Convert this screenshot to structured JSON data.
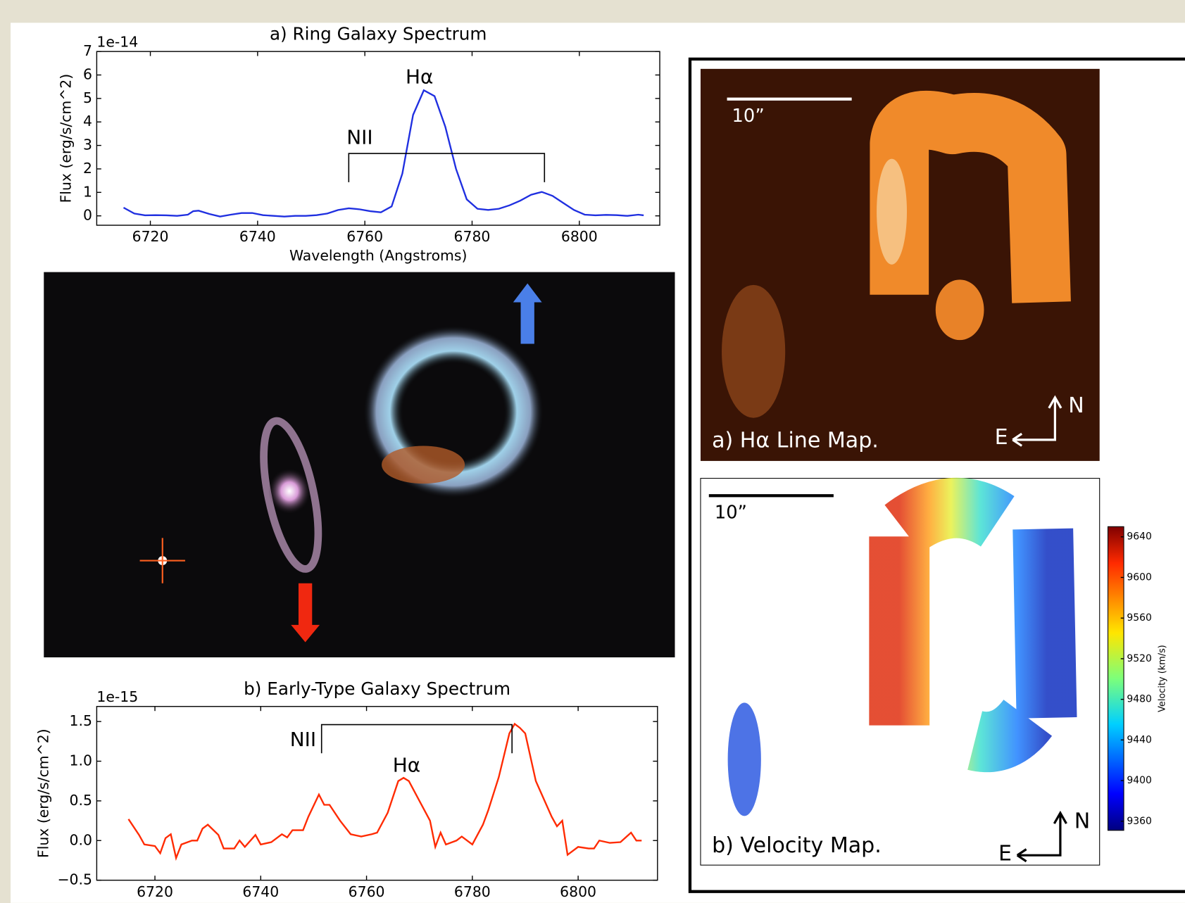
{
  "chart_data": [
    {
      "type": "line",
      "title": "a) Ring Galaxy Spectrum",
      "offset_label": "1e-14",
      "x_label": "Wavelength (Angstroms)",
      "y_label": "Flux (erg/s/cm^2)",
      "annotations": [
        "Hα",
        "NII"
      ],
      "xlim": [
        6710,
        6815
      ],
      "xticks": [
        6720,
        6740,
        6760,
        6780,
        6800
      ],
      "ylim": [
        -0.4,
        7
      ],
      "yticks": [
        0,
        1,
        2,
        3,
        4,
        5,
        6,
        7
      ],
      "series": [
        {
          "color": "#1f2fe0",
          "x": [
            6715,
            6717,
            6719,
            6721,
            6723,
            6725,
            6727,
            6728,
            6729,
            6731,
            6733,
            6735,
            6737,
            6739,
            6741,
            6743,
            6745,
            6747,
            6749,
            6751,
            6753,
            6755,
            6757,
            6759,
            6761,
            6763,
            6765,
            6767,
            6769,
            6771,
            6773,
            6775,
            6777,
            6779,
            6781,
            6783,
            6785,
            6787,
            6789,
            6791,
            6793,
            6795,
            6797,
            6799,
            6801,
            6803,
            6805,
            6807,
            6809,
            6811,
            6812
          ],
          "values": [
            0.35,
            0.1,
            0.02,
            0.03,
            0.02,
            0.0,
            0.05,
            0.2,
            0.22,
            0.08,
            -0.03,
            0.05,
            0.12,
            0.12,
            0.03,
            0.0,
            -0.03,
            0.0,
            0.0,
            0.03,
            0.1,
            0.25,
            0.32,
            0.28,
            0.2,
            0.15,
            0.4,
            1.8,
            4.3,
            5.35,
            5.1,
            3.8,
            2.0,
            0.7,
            0.3,
            0.25,
            0.3,
            0.45,
            0.65,
            0.9,
            1.02,
            0.85,
            0.55,
            0.25,
            0.05,
            0.02,
            0.04,
            0.03,
            0.0,
            0.05,
            0.02
          ]
        }
      ]
    },
    {
      "type": "line",
      "title": "b) Early-Type Galaxy Spectrum",
      "offset_label": "1e-15",
      "y_label": "Flux (erg/s/cm^2)",
      "annotations": [
        "Hα",
        "NII"
      ],
      "xlim": [
        6709,
        6815
      ],
      "xticks": [
        6720,
        6740,
        6760,
        6780,
        6800
      ],
      "ylim": [
        -0.5,
        1.69
      ],
      "yticks": [
        {
          "value": -0.5,
          "label": "−0.5"
        },
        {
          "value": 0,
          "label": "0.0"
        },
        {
          "value": 0.5,
          "label": "0.5"
        },
        {
          "value": 1,
          "label": "1.0"
        },
        {
          "value": 1.5,
          "label": "1.5"
        }
      ],
      "series": [
        {
          "color": "#ff2a00",
          "x": [
            6715,
            6717,
            6718,
            6720,
            6721,
            6722,
            6723,
            6724,
            6725,
            6727,
            6728,
            6729,
            6730,
            6732,
            6733,
            6735,
            6736,
            6737,
            6739,
            6740,
            6742,
            6744,
            6745,
            6746,
            6748,
            6749,
            6751,
            6752,
            6753,
            6755,
            6757,
            6759,
            6761,
            6762,
            6764,
            6766,
            6767,
            6768,
            6770,
            6772,
            6773,
            6774,
            6775,
            6777,
            6778,
            6780,
            6782,
            6783,
            6785,
            6787,
            6788,
            6789,
            6790,
            6792,
            6793,
            6795,
            6796,
            6797,
            6798,
            6800,
            6802,
            6803,
            6804,
            6806,
            6808,
            6810,
            6811,
            6812
          ],
          "values": [
            0.27,
            0.07,
            -0.05,
            -0.07,
            -0.16,
            0.03,
            0.08,
            -0.22,
            -0.05,
            0.0,
            0.0,
            0.15,
            0.2,
            0.07,
            -0.1,
            -0.1,
            0.0,
            -0.08,
            0.07,
            -0.05,
            -0.02,
            0.08,
            0.04,
            0.13,
            0.13,
            0.3,
            0.58,
            0.45,
            0.45,
            0.25,
            0.08,
            0.05,
            0.08,
            0.1,
            0.35,
            0.75,
            0.79,
            0.75,
            0.5,
            0.25,
            -0.08,
            0.1,
            -0.05,
            0.0,
            0.05,
            -0.05,
            0.2,
            0.38,
            0.8,
            1.35,
            1.47,
            1.42,
            1.35,
            0.75,
            0.6,
            0.3,
            0.18,
            0.25,
            -0.18,
            -0.08,
            -0.1,
            -0.1,
            0.0,
            -0.03,
            -0.02,
            0.1,
            0.0,
            0.0
          ]
        }
      ]
    },
    {
      "type": "colorbar",
      "label": "Velocity (km/s)",
      "zlim": [
        9351,
        9650
      ],
      "ticks": [
        9360,
        9400,
        9440,
        9480,
        9520,
        9560,
        9600,
        9640
      ]
    }
  ],
  "maps": {
    "scale_a": "10”",
    "title_a": "a) Hα Line Map.",
    "north_a": "N",
    "east_a": "E",
    "scale_b": "10”",
    "title_b": "b) Velocity Map.",
    "north_b": "N",
    "east_b": "E"
  }
}
